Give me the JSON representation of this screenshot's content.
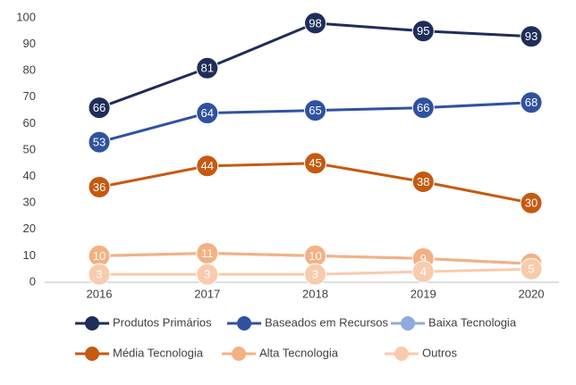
{
  "chart_data": {
    "type": "line",
    "categories": [
      "2016",
      "2017",
      "2018",
      "2019",
      "2020"
    ],
    "series": [
      {
        "name": "Produtos Primários",
        "color": "#1f2d5a",
        "values": [
          66,
          81,
          98,
          95,
          93
        ],
        "labels": true
      },
      {
        "name": "Baseados em Recursos",
        "color": "#2f52a0",
        "values": [
          53,
          64,
          65,
          66,
          68
        ],
        "labels": true
      },
      {
        "name": "Baixa Tecnologia",
        "color": "#8faadc",
        "values": [
          10,
          11,
          10,
          9,
          7
        ],
        "labels": false
      },
      {
        "name": "Média Tecnologia",
        "color": "#c55a11",
        "values": [
          36,
          44,
          45,
          38,
          30
        ],
        "labels": true
      },
      {
        "name": "Alta Tecnologia",
        "color": "#f4b183",
        "values": [
          10,
          11,
          10,
          9,
          7
        ],
        "labels": true
      },
      {
        "name": "Outros",
        "color": "#f8cbad",
        "values": [
          3,
          3,
          3,
          4,
          5
        ],
        "labels": true
      }
    ],
    "ylim": [
      0,
      100
    ],
    "yticks": [
      0,
      10,
      20,
      30,
      40,
      50,
      60,
      70,
      80,
      90,
      100
    ],
    "grid": false,
    "legend": "bottom"
  }
}
